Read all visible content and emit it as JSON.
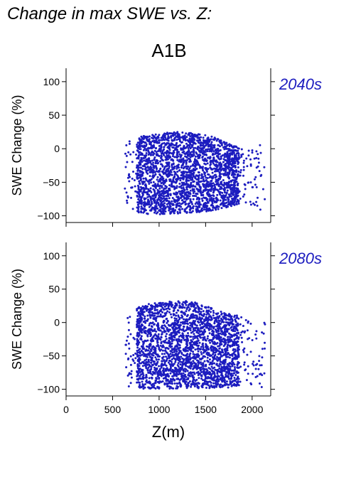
{
  "figure_title": "Change in max SWE vs. Z:",
  "scenario": "A1B",
  "colors": {
    "points": "#1c1cbf",
    "period_label": "#1c1cbf",
    "axis": "#000000"
  },
  "chart_data": [
    {
      "type": "scatter",
      "period": "2040s",
      "xlabel": "",
      "ylabel": "SWE Change (%)",
      "xlim": [
        0,
        2200
      ],
      "ylim": [
        -110,
        120
      ],
      "xticks": [
        0,
        500,
        1000,
        1500,
        2000
      ],
      "xtick_labels_shown": false,
      "yticks": [
        -100,
        -50,
        0,
        50,
        100
      ],
      "grid": false,
      "point_cloud": {
        "x_range": [
          630,
          2140
        ],
        "dense_x_range": [
          760,
          1860
        ],
        "y_min": -100,
        "upper_envelope": [
          [
            630,
            8
          ],
          [
            700,
            12
          ],
          [
            800,
            18
          ],
          [
            900,
            21
          ],
          [
            1000,
            22
          ],
          [
            1100,
            24
          ],
          [
            1200,
            25
          ],
          [
            1300,
            24
          ],
          [
            1400,
            23
          ],
          [
            1500,
            20
          ],
          [
            1600,
            17
          ],
          [
            1700,
            10
          ],
          [
            1800,
            5
          ],
          [
            1900,
            2
          ],
          [
            2000,
            0
          ],
          [
            2140,
            15
          ]
        ],
        "lower_envelope": [
          [
            630,
            -88
          ],
          [
            700,
            -92
          ],
          [
            800,
            -96
          ],
          [
            900,
            -98
          ],
          [
            1000,
            -98
          ],
          [
            1200,
            -97
          ],
          [
            1400,
            -95
          ],
          [
            1600,
            -92
          ],
          [
            1800,
            -85
          ],
          [
            1900,
            -80
          ],
          [
            2000,
            -90
          ],
          [
            2140,
            -96
          ]
        ]
      }
    },
    {
      "type": "scatter",
      "period": "2080s",
      "xlabel": "Z(m)",
      "ylabel": "SWE Change (%)",
      "xlim": [
        0,
        2200
      ],
      "ylim": [
        -110,
        120
      ],
      "xticks": [
        0,
        500,
        1000,
        1500,
        2000
      ],
      "xtick_labels_shown": true,
      "yticks": [
        -100,
        -50,
        0,
        50,
        100
      ],
      "grid": false,
      "point_cloud": {
        "x_range": [
          630,
          2140
        ],
        "dense_x_range": [
          760,
          1860
        ],
        "y_min": -100,
        "upper_envelope": [
          [
            630,
            5
          ],
          [
            700,
            15
          ],
          [
            800,
            25
          ],
          [
            900,
            28
          ],
          [
            1000,
            30
          ],
          [
            1100,
            31
          ],
          [
            1200,
            33
          ],
          [
            1300,
            32
          ],
          [
            1400,
            30
          ],
          [
            1500,
            25
          ],
          [
            1600,
            20
          ],
          [
            1700,
            15
          ],
          [
            1800,
            12
          ],
          [
            1900,
            8
          ],
          [
            2000,
            2
          ],
          [
            2140,
            0
          ]
        ],
        "lower_envelope": [
          [
            630,
            -98
          ],
          [
            800,
            -99
          ],
          [
            1000,
            -99
          ],
          [
            1200,
            -99
          ],
          [
            1400,
            -99
          ],
          [
            1600,
            -98
          ],
          [
            1800,
            -97
          ],
          [
            2000,
            -95
          ],
          [
            2140,
            -98
          ]
        ]
      }
    }
  ]
}
